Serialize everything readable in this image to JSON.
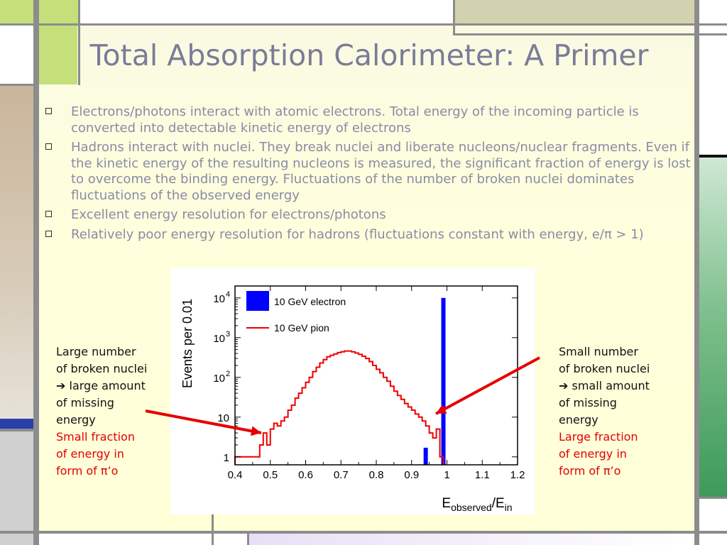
{
  "slide": {
    "title": "Total Absorption Calorimeter: A Primer",
    "bullets": [
      "Electrons/photons interact with atomic electrons. Total energy of the incoming particle is converted into detectable kinetic energy of electrons",
      "Hadrons interact with nuclei. They break nuclei and liberate nucleons/nuclear fragments. Even if the kinetic energy of the resulting nucleons is measured, the significant fraction of energy is lost to overcome the binding energy. Fluctuations of the number of broken nuclei dominates fluctuations of the observed energy",
      "Excellent energy resolution for electrons/photons",
      "Relatively poor energy resolution for hadrons (fluctuations constant with energy, e/π > 1)"
    ]
  },
  "annotations": {
    "left": {
      "lines": [
        "Large number",
        "of broken nuclei",
        "➔ large amount",
        "of missing",
        "energy"
      ],
      "red_lines": [
        "Small fraction",
        "of energy in",
        "form of π’o"
      ]
    },
    "right": {
      "lines": [
        "Small number",
        "of broken nuclei",
        "➔ small amount",
        "of missing",
        "energy"
      ],
      "red_lines": [
        "Large fraction",
        "of energy in",
        "form of π’o"
      ]
    },
    "arrow_color": "#e60000"
  },
  "colors": {
    "electron": "#0000ff",
    "pion": "#ee0000",
    "frame_green": "#c5e07a",
    "frame_khaki": "#d2d2b0"
  },
  "chart_data": {
    "type": "bar",
    "xlabel": "E_observed/E_in",
    "xlabel_parts": [
      "E",
      "observed",
      "/E",
      "in"
    ],
    "ylabel": "Events per 0.01",
    "x_range": [
      0.4,
      1.2
    ],
    "y_range_log10": [
      -0.2,
      4.3
    ],
    "log_y": true,
    "x_ticks": [
      "0.4",
      "0.5",
      "0.6",
      "0.7",
      "0.8",
      "0.9",
      "1",
      "1.1",
      "1.2"
    ],
    "y_ticks": [
      {
        "label": "1",
        "exp": ""
      },
      {
        "label": "10",
        "exp": ""
      },
      {
        "label": "10",
        "exp": "2"
      },
      {
        "label": "10",
        "exp": "3"
      },
      {
        "label": "10",
        "exp": "4"
      }
    ],
    "legend": [
      "10 GeV electron",
      "10 GeV pion"
    ],
    "series": [
      {
        "name": "10 GeV electron",
        "kind": "bars",
        "x": [
          0.94,
          0.99
        ],
        "values": [
          1.7,
          10000
        ]
      },
      {
        "name": "10 GeV pion",
        "kind": "step",
        "x": [
          0.4,
          0.44,
          0.47,
          0.48,
          0.49,
          0.5,
          0.51,
          0.52,
          0.53,
          0.54,
          0.55,
          0.56,
          0.57,
          0.58,
          0.59,
          0.6,
          0.61,
          0.62,
          0.63,
          0.64,
          0.65,
          0.66,
          0.67,
          0.68,
          0.69,
          0.7,
          0.71,
          0.72,
          0.73,
          0.74,
          0.75,
          0.76,
          0.77,
          0.78,
          0.79,
          0.8,
          0.81,
          0.82,
          0.83,
          0.84,
          0.85,
          0.86,
          0.87,
          0.88,
          0.89,
          0.9,
          0.91,
          0.92,
          0.93,
          0.94,
          0.95,
          0.96,
          0.97,
          0.98
        ],
        "values": [
          1,
          1,
          2,
          4,
          2,
          5,
          7,
          6,
          8,
          10,
          15,
          20,
          30,
          40,
          55,
          75,
          100,
          140,
          180,
          230,
          280,
          330,
          360,
          390,
          420,
          440,
          460,
          460,
          440,
          410,
          380,
          340,
          300,
          250,
          200,
          160,
          130,
          100,
          80,
          60,
          45,
          35,
          28,
          22,
          18,
          15,
          12,
          10,
          8,
          6,
          4,
          3,
          5,
          1
        ]
      }
    ]
  }
}
